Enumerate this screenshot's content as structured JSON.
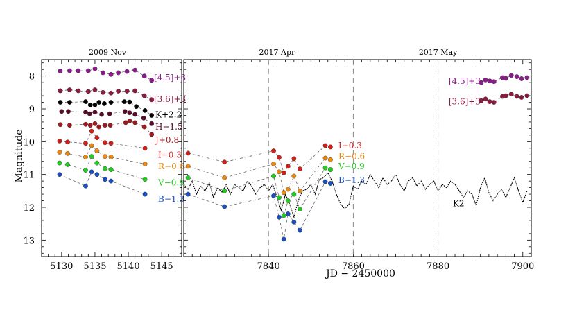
{
  "figure": {
    "ylabel": "Magnitude",
    "xlabel": "JD − 2450000",
    "left_top_label": "2009 Nov",
    "right_top_labels": [
      {
        "text": "2017 Apr",
        "x": 7842
      },
      {
        "text": "2017 May",
        "x": 7880
      }
    ],
    "ylim": [
      13.5,
      7.5
    ],
    "yticks": [
      8,
      9,
      10,
      11,
      12,
      13
    ],
    "left_xlim": [
      5127,
      5148
    ],
    "left_xticks": [
      5130,
      5135,
      5140,
      5145
    ],
    "right_xlim": [
      7820,
      7902
    ],
    "right_xticks": [
      7840,
      7860,
      7880,
      7900
    ],
    "dashed_vlines": [
      7840,
      7860,
      7880
    ],
    "k2_label": "K2"
  },
  "chart_data": {
    "type": "scatter",
    "title": "",
    "xlabel": "JD − 2450000",
    "ylabel": "Magnitude",
    "y_inverted": true,
    "grid": false,
    "left_panel": {
      "top_label": "2009 Nov",
      "xlim": [
        5127,
        5148
      ],
      "series": [
        {
          "name": "[4.5]+3",
          "color": "#8b1a8b",
          "label_y": 8.05,
          "x": [
            5129.8,
            5131.2,
            5132.5,
            5134.0,
            5135.0,
            5136.2,
            5137.4,
            5138.5,
            5139.8,
            5141.0,
            5142.4,
            5143.5
          ],
          "y": [
            7.85,
            7.84,
            7.84,
            7.84,
            7.78,
            7.9,
            7.95,
            7.9,
            7.86,
            7.82,
            8.0,
            8.13
          ]
        },
        {
          "name": "[3.6]+3",
          "color": "#8b1a3c",
          "label_y": 8.7,
          "x": [
            5129.8,
            5131.2,
            5132.5,
            5134.0,
            5135.0,
            5136.2,
            5137.4,
            5138.5,
            5139.8,
            5141.0,
            5142.4,
            5143.5
          ],
          "y": [
            8.45,
            8.42,
            8.45,
            8.47,
            8.42,
            8.5,
            8.52,
            8.46,
            8.46,
            8.45,
            8.6,
            8.72
          ]
        },
        {
          "name": "K+2.2",
          "color": "#000000",
          "label_y": 9.18,
          "x": [
            5129.8,
            5131.2,
            5133.6,
            5134.3,
            5135.0,
            5135.6,
            5136.4,
            5137.4,
            5139.4,
            5140.2,
            5141.2,
            5142.5,
            5143.5
          ],
          "y": [
            8.8,
            8.8,
            8.78,
            8.88,
            8.88,
            8.8,
            8.84,
            8.8,
            8.78,
            8.79,
            8.93,
            9.05,
            9.2
          ]
        },
        {
          "name": "H+1.5",
          "color": "#5a0a28",
          "label_y": 9.55,
          "x": [
            5130.0,
            5131.0,
            5133.6,
            5134.2,
            5135.0,
            5136.0,
            5137.2,
            5139.5,
            5140.2,
            5141.0,
            5142.3,
            5143.5
          ],
          "y": [
            9.08,
            9.08,
            9.1,
            9.15,
            9.1,
            9.17,
            9.15,
            9.08,
            9.12,
            9.17,
            9.28,
            9.45
          ]
        },
        {
          "name": "J+0.8",
          "color": "#a0191e",
          "label_y": 9.95,
          "x": [
            5129.8,
            5131.2,
            5133.6,
            5134.3,
            5135.0,
            5135.6,
            5136.5,
            5137.3,
            5139.6,
            5140.2,
            5141.0,
            5142.4,
            5143.5
          ],
          "y": [
            9.48,
            9.5,
            9.47,
            9.5,
            9.45,
            9.55,
            9.5,
            9.5,
            9.42,
            9.37,
            9.42,
            9.55,
            9.78
          ]
        },
        {
          "name": "I−0.3",
          "color": "#d21f1a",
          "label_y": 10.4,
          "x": [
            5129.7,
            5130.9,
            5133.6,
            5134.5,
            5135.3,
            5136.5,
            5137.4,
            5142.5
          ],
          "y": [
            9.98,
            10.01,
            10.05,
            9.68,
            9.88,
            10.03,
            10.05,
            10.2
          ]
        },
        {
          "name": "R−0.6",
          "color": "#ea8a12",
          "label_y": 10.75,
          "x": [
            5129.7,
            5130.9,
            5133.6,
            5134.5,
            5135.3,
            5136.5,
            5137.4,
            5142.5
          ],
          "y": [
            10.32,
            10.36,
            10.47,
            10.12,
            10.28,
            10.45,
            10.47,
            10.68
          ]
        },
        {
          "name": "V−0.9",
          "color": "#22cc22",
          "label_y": 11.25,
          "x": [
            5129.7,
            5130.9,
            5133.6,
            5134.5,
            5135.3,
            5136.5,
            5137.4,
            5142.5
          ],
          "y": [
            10.65,
            10.7,
            10.87,
            10.45,
            10.65,
            10.82,
            10.85,
            11.15
          ]
        },
        {
          "name": "B−1.3",
          "color": "#1a4fbf",
          "label_y": 11.75,
          "x": [
            5129.7,
            5133.6,
            5134.5,
            5135.3,
            5136.5,
            5137.4,
            5142.5
          ],
          "y": [
            11.0,
            11.35,
            10.92,
            11.0,
            11.15,
            11.2,
            11.6
          ]
        }
      ]
    },
    "right_panel": {
      "xlim": [
        7820,
        7902
      ],
      "series": [
        {
          "name": "[4.5]+3",
          "color": "#8b1a8b",
          "label_x": 7882.5,
          "label_y": 8.15,
          "x": [
            7890.2,
            7891.2,
            7892.2,
            7893.2,
            7895.2,
            7896.0,
            7897.3,
            7898.6,
            7899.7,
            7901.0
          ],
          "y": [
            8.2,
            8.12,
            8.15,
            8.17,
            8.05,
            8.07,
            7.98,
            8.02,
            8.08,
            8.05
          ]
        },
        {
          "name": "[3.6]+3",
          "color": "#8b1a3c",
          "label_x": 7882.5,
          "label_y": 8.78,
          "x": [
            7890.2,
            7891.2,
            7892.2,
            7893.2,
            7895.2,
            7896.0,
            7897.3,
            7898.6,
            7899.7,
            7901.0
          ],
          "y": [
            8.75,
            8.7,
            8.78,
            8.8,
            8.62,
            8.6,
            8.55,
            8.62,
            8.65,
            8.6
          ]
        },
        {
          "name": "I−0.3",
          "color": "#d21f1a",
          "label_x": 7856.5,
          "label_y": 10.12,
          "x": [
            7821.0,
            7829.6,
            7841.2,
            7842.5,
            7843.6,
            7844.6,
            7846.0,
            7847.4,
            7853.4,
            7854.6
          ],
          "y": [
            10.35,
            10.62,
            10.28,
            10.48,
            10.95,
            10.75,
            10.52,
            10.83,
            10.12,
            10.16
          ]
        },
        {
          "name": "R−0.6",
          "color": "#ea8a12",
          "label_x": 7856.5,
          "label_y": 10.45,
          "x": [
            7821.0,
            7829.6,
            7841.2,
            7842.5,
            7843.6,
            7844.6,
            7846.0,
            7847.4,
            7853.4,
            7854.6
          ],
          "y": [
            10.75,
            11.1,
            10.68,
            10.92,
            11.55,
            11.45,
            11.05,
            11.5,
            10.5,
            10.55
          ]
        },
        {
          "name": "V−0.9",
          "color": "#22cc22",
          "label_x": 7856.5,
          "label_y": 10.75,
          "x": [
            7821.0,
            7829.6,
            7841.2,
            7842.5,
            7843.6,
            7844.6,
            7846.0,
            7847.4,
            7853.4,
            7854.6
          ],
          "y": [
            11.1,
            11.5,
            11.05,
            11.7,
            12.25,
            11.8,
            11.6,
            12.05,
            10.8,
            10.85
          ]
        },
        {
          "name": "B−1.3",
          "color": "#1a4fbf",
          "label_x": 7856.5,
          "label_y": 11.18,
          "x": [
            7821.0,
            7829.6,
            7841.2,
            7842.5,
            7843.6,
            7844.6,
            7846.0,
            7847.4,
            7853.4,
            7854.6
          ],
          "y": [
            11.6,
            11.98,
            11.65,
            12.3,
            12.97,
            12.2,
            12.45,
            12.7,
            11.22,
            11.27
          ]
        }
      ],
      "k2_curve": {
        "name": "K2",
        "color": "#000000",
        "label_x": 7883.5,
        "label_y": 11.88,
        "x": [
          7820,
          7821,
          7822,
          7823,
          7824,
          7825,
          7826,
          7827,
          7828,
          7829,
          7830,
          7831,
          7832,
          7833,
          7834,
          7835,
          7836,
          7837,
          7838,
          7839,
          7840,
          7841,
          7842,
          7843,
          7844,
          7845,
          7846,
          7847,
          7848,
          7849,
          7850,
          7851,
          7852,
          7853,
          7854,
          7855,
          7856,
          7857,
          7858,
          7859,
          7860,
          7861,
          7862,
          7863,
          7864,
          7865,
          7866,
          7867,
          7868,
          7869,
          7870,
          7871,
          7872,
          7873,
          7874,
          7875,
          7876,
          7877,
          7878,
          7879,
          7880,
          7881,
          7882,
          7883,
          7884,
          7885,
          7886,
          7887,
          7888,
          7889,
          7890,
          7891,
          7892,
          7893,
          7894,
          7895,
          7896,
          7897,
          7898,
          7899,
          7900,
          7901
        ],
        "y": [
          11.3,
          11.45,
          11.2,
          11.6,
          11.35,
          11.5,
          11.25,
          11.7,
          11.4,
          11.55,
          11.3,
          11.6,
          11.3,
          11.4,
          11.5,
          11.2,
          11.35,
          11.6,
          11.4,
          11.3,
          11.5,
          11.3,
          11.7,
          12.1,
          11.6,
          11.9,
          12.3,
          11.8,
          11.5,
          11.45,
          11.3,
          11.6,
          11.15,
          11.1,
          10.95,
          11.2,
          11.6,
          11.9,
          12.05,
          11.9,
          11.35,
          11.45,
          11.2,
          11.3,
          11.0,
          11.2,
          11.4,
          11.1,
          11.3,
          11.2,
          11.0,
          11.3,
          11.5,
          11.2,
          11.1,
          11.35,
          11.2,
          11.45,
          11.3,
          11.2,
          11.5,
          11.3,
          11.4,
          11.2,
          11.3,
          11.5,
          11.7,
          11.5,
          11.6,
          11.95,
          11.4,
          11.1,
          11.55,
          11.8,
          11.6,
          11.45,
          11.7,
          11.4,
          11.1,
          11.5,
          11.85,
          11.5
        ]
      }
    }
  }
}
